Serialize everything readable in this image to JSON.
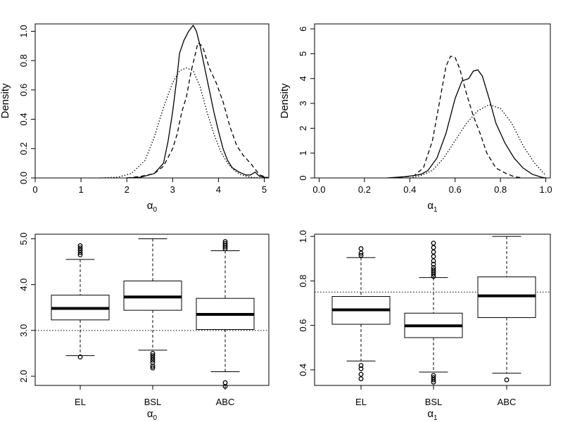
{
  "chart_data": [
    {
      "type": "line",
      "panel": "top-left",
      "xlabel": "α",
      "xlabel_sub": "0",
      "ylabel": "Density",
      "xlim": [
        0,
        5.1
      ],
      "ylim": [
        0,
        1.05
      ],
      "xticks": [
        0,
        1,
        2,
        3,
        4,
        5
      ],
      "yticks": [
        0.0,
        0.2,
        0.4,
        0.6,
        0.8,
        1.0
      ],
      "ytick_labels": [
        "0.0",
        "0.2",
        "0.4",
        "0.6",
        "0.8",
        "1.0"
      ],
      "series": [
        {
          "style": "solid",
          "x": [
            2.0,
            2.3,
            2.6,
            2.8,
            2.9,
            3.0,
            3.1,
            3.15,
            3.25,
            3.35,
            3.45,
            3.52,
            3.6,
            3.7,
            3.8,
            3.9,
            4.0,
            4.1,
            4.2,
            4.3,
            4.45,
            4.6,
            4.7,
            4.8,
            4.9,
            5.1
          ],
          "y": [
            0.0,
            0.005,
            0.03,
            0.1,
            0.25,
            0.45,
            0.7,
            0.85,
            0.94,
            1.0,
            1.04,
            1.0,
            0.9,
            0.75,
            0.6,
            0.45,
            0.32,
            0.2,
            0.12,
            0.07,
            0.04,
            0.02,
            0.02,
            0.04,
            0.01,
            0.0
          ]
        },
        {
          "style": "dashed",
          "x": [
            2.0,
            2.3,
            2.6,
            2.8,
            3.0,
            3.1,
            3.2,
            3.3,
            3.4,
            3.5,
            3.55,
            3.65,
            3.8,
            3.95,
            4.1,
            4.25,
            4.4,
            4.55,
            4.7,
            4.8,
            4.9,
            5.1
          ],
          "y": [
            0.0,
            0.01,
            0.03,
            0.08,
            0.2,
            0.3,
            0.45,
            0.55,
            0.72,
            0.85,
            0.92,
            0.9,
            0.75,
            0.65,
            0.52,
            0.35,
            0.22,
            0.15,
            0.1,
            0.06,
            0.02,
            0.0
          ]
        },
        {
          "style": "dotted",
          "x": [
            1.4,
            1.8,
            2.1,
            2.4,
            2.6,
            2.8,
            3.0,
            3.15,
            3.3,
            3.45,
            3.6,
            3.75,
            3.9,
            4.05,
            4.2,
            4.35,
            4.5,
            4.7,
            4.9
          ],
          "y": [
            0.0,
            0.005,
            0.03,
            0.12,
            0.28,
            0.48,
            0.65,
            0.73,
            0.75,
            0.73,
            0.62,
            0.45,
            0.3,
            0.18,
            0.1,
            0.05,
            0.02,
            0.005,
            0.0
          ]
        }
      ]
    },
    {
      "type": "line",
      "panel": "top-right",
      "xlabel": "α",
      "xlabel_sub": "1",
      "ylabel": "Density",
      "xlim": [
        -0.02,
        1.02
      ],
      "ylim": [
        0,
        6.2
      ],
      "xticks": [
        0.0,
        0.2,
        0.4,
        0.6,
        0.8,
        1.0
      ],
      "xtick_labels": [
        "0.0",
        "0.2",
        "0.4",
        "0.6",
        "0.8",
        "1.0"
      ],
      "yticks": [
        0,
        1,
        2,
        3,
        4,
        5,
        6
      ],
      "series": [
        {
          "style": "solid",
          "x": [
            0.3,
            0.38,
            0.42,
            0.45,
            0.48,
            0.52,
            0.56,
            0.6,
            0.63,
            0.66,
            0.68,
            0.7,
            0.72,
            0.75,
            0.78,
            0.82,
            0.86,
            0.9,
            0.94,
            0.98,
            1.0
          ],
          "y": [
            0.0,
            0.05,
            0.1,
            0.15,
            0.3,
            0.8,
            1.8,
            3.2,
            3.9,
            4.0,
            4.3,
            4.35,
            4.1,
            3.2,
            2.2,
            1.4,
            0.8,
            0.4,
            0.15,
            0.03,
            0.0
          ]
        },
        {
          "style": "dashed",
          "x": [
            0.35,
            0.42,
            0.46,
            0.5,
            0.53,
            0.56,
            0.58,
            0.6,
            0.62,
            0.65,
            0.68,
            0.71,
            0.74,
            0.78,
            0.82,
            0.86,
            0.9
          ],
          "y": [
            0.0,
            0.1,
            0.4,
            1.5,
            3.0,
            4.5,
            4.9,
            4.85,
            4.4,
            3.4,
            2.5,
            1.8,
            1.0,
            0.4,
            0.2,
            0.05,
            0.0
          ]
        },
        {
          "style": "dotted",
          "x": [
            0.4,
            0.45,
            0.5,
            0.55,
            0.6,
            0.65,
            0.7,
            0.75,
            0.8,
            0.85,
            0.9,
            0.95,
            1.0
          ],
          "y": [
            0.0,
            0.1,
            0.3,
            0.8,
            1.5,
            2.2,
            2.7,
            2.95,
            2.8,
            2.2,
            1.3,
            0.6,
            0.1
          ]
        }
      ]
    },
    {
      "type": "box",
      "panel": "bottom-left",
      "xlabel": "α",
      "xlabel_sub": "0",
      "categories": [
        "EL",
        "BSL",
        "ABC"
      ],
      "ylim": [
        1.8,
        5.1
      ],
      "yticks": [
        2.0,
        3.0,
        4.0,
        5.0
      ],
      "ytick_labels": [
        "2.0",
        "3.0",
        "4.0",
        "5.0"
      ],
      "reference_line": 3.0,
      "boxes": [
        {
          "whisker_low": 2.45,
          "q1": 3.23,
          "median": 3.48,
          "q3": 3.77,
          "whisker_high": 4.55,
          "outliers": [
            2.42,
            4.65,
            4.7,
            4.75,
            4.8,
            4.85
          ]
        },
        {
          "whisker_low": 2.57,
          "q1": 3.44,
          "median": 3.73,
          "q3": 4.08,
          "whisker_high": 5.0,
          "outliers": [
            2.5,
            2.45,
            2.4,
            2.35,
            2.3,
            2.22,
            2.18
          ]
        },
        {
          "whisker_low": 2.1,
          "q1": 3.02,
          "median": 3.35,
          "q3": 3.7,
          "whisker_high": 4.74,
          "outliers": [
            1.78,
            1.86,
            4.78,
            4.82,
            4.86,
            4.9,
            4.94
          ]
        }
      ]
    },
    {
      "type": "box",
      "panel": "bottom-right",
      "xlabel": "α",
      "xlabel_sub": "1",
      "categories": [
        "EL",
        "BSL",
        "ABC"
      ],
      "ylim": [
        0.33,
        1.01
      ],
      "yticks": [
        0.4,
        0.6,
        0.8,
        1.0
      ],
      "ytick_labels": [
        "0.4",
        "0.6",
        "0.8",
        "1.0"
      ],
      "reference_line": 0.75,
      "boxes": [
        {
          "whisker_low": 0.44,
          "q1": 0.605,
          "median": 0.67,
          "q3": 0.73,
          "whisker_high": 0.905,
          "outliers": [
            0.36,
            0.38,
            0.405,
            0.42,
            0.915,
            0.925,
            0.945
          ]
        },
        {
          "whisker_low": 0.39,
          "q1": 0.545,
          "median": 0.598,
          "q3": 0.655,
          "whisker_high": 0.815,
          "outliers": [
            0.345,
            0.355,
            0.365,
            0.375,
            0.82,
            0.83,
            0.84,
            0.85,
            0.86,
            0.875,
            0.89,
            0.91,
            0.93,
            0.95,
            0.97
          ]
        },
        {
          "whisker_low": 0.385,
          "q1": 0.635,
          "median": 0.733,
          "q3": 0.818,
          "whisker_high": 1.0,
          "outliers": [
            0.355
          ]
        }
      ]
    }
  ]
}
